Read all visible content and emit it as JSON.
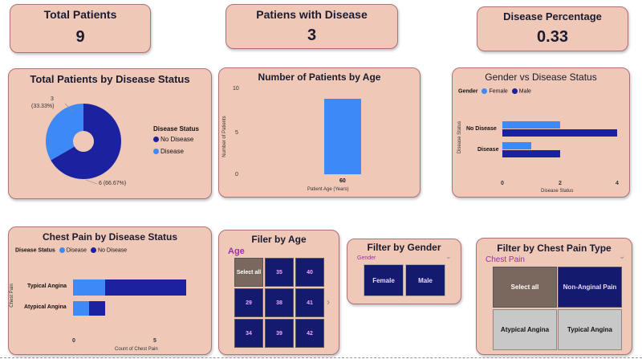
{
  "kpis": {
    "total_patients": {
      "title": "Total Patients",
      "value": "9"
    },
    "patients_with_disease": {
      "title": "Patiens with Disease",
      "value": "3"
    },
    "disease_percentage": {
      "title": "Disease Percentage",
      "value": "0.33"
    }
  },
  "donut": {
    "title": "Total Patients by Disease Status",
    "label_disease_line1": "3",
    "label_disease_line2": "(33.33%)",
    "label_no_disease": "6 (66.67%)",
    "legend_title": "Disease Status",
    "legend_items": [
      "No Disease",
      "Disease"
    ]
  },
  "age_chart": {
    "title": "Number of Patients by Age",
    "y_title": "Number of Patients",
    "x_title": "Patient Age (Years)",
    "y_ticks": [
      "10",
      "5",
      "0"
    ],
    "bar_label": "60"
  },
  "gender_chart": {
    "title": "Gender vs Disease Status",
    "legend_title": "Gender",
    "legend_items": [
      "Female",
      "Male"
    ],
    "y_title": "Disease Status",
    "categories": [
      "No Disease",
      "Disease"
    ],
    "x_ticks": [
      "0",
      "2",
      "4"
    ],
    "x_title": "Disease Status"
  },
  "chest_chart": {
    "title": "Chest Pain by Disease Status",
    "legend_title": "Disease Status",
    "legend_items": [
      "Disease",
      "No Disease"
    ],
    "y_title": "Chest Pain",
    "categories": [
      "Typical Angina",
      "Atypical Angina"
    ],
    "x_ticks": [
      "0",
      "5"
    ],
    "x_title": "Count of Chest Pain"
  },
  "age_filter": {
    "title": "Filer by Age",
    "header": "Age",
    "tiles": [
      "Select all",
      "35",
      "40",
      "29",
      "38",
      "41",
      "34",
      "39",
      "42"
    ]
  },
  "gender_filter": {
    "title": "Filter by Gender",
    "header": "Gender",
    "tiles": [
      "Female",
      "Male"
    ]
  },
  "chest_filter": {
    "title": "Filter by Chest Pain Type",
    "header": "Chest Pain",
    "tiles": [
      "Select all",
      "Non-Anginal Pain",
      "Atypical Angina",
      "Typical Angina"
    ]
  },
  "chart_data": [
    {
      "type": "pie",
      "title": "Total Patients by Disease Status",
      "categories": [
        "No Disease",
        "Disease"
      ],
      "values": [
        6,
        3
      ],
      "colors": [
        "#1a22a0",
        "#3d8af7"
      ]
    },
    {
      "type": "bar",
      "title": "Number of Patients by Age",
      "categories": [
        "60"
      ],
      "values": [
        9
      ],
      "ylim": [
        0,
        10
      ],
      "xlabel": "Patient Age (Years)",
      "ylabel": "Number of Patients"
    },
    {
      "type": "bar",
      "orientation": "horizontal",
      "title": "Gender vs Disease Status",
      "categories": [
        "No Disease",
        "Disease"
      ],
      "series": [
        {
          "name": "Female",
          "values": [
            2,
            1
          ],
          "color": "#3d8af7"
        },
        {
          "name": "Male",
          "values": [
            4,
            2
          ],
          "color": "#1a22a0"
        }
      ],
      "xlim": [
        0,
        4
      ],
      "xlabel": "Disease Status",
      "ylabel": "Disease Status"
    },
    {
      "type": "bar",
      "orientation": "horizontal",
      "stacked": true,
      "title": "Chest Pain by Disease Status",
      "categories": [
        "Typical Angina",
        "Atypical Angina"
      ],
      "series": [
        {
          "name": "Disease",
          "values": [
            2,
            1
          ],
          "color": "#3d8af7"
        },
        {
          "name": "No Disease",
          "values": [
            5,
            1
          ],
          "color": "#1a22a0"
        }
      ],
      "xlim": [
        0,
        7
      ],
      "xlabel": "Count of Chest Pain",
      "ylabel": "Chest Pain"
    }
  ],
  "colors": {
    "card": "#f0c8b8",
    "dark_blue": "#1a22a0",
    "light_blue": "#3d8af7",
    "tile_gray": "#7a685e",
    "tile_navy": "#141a6e",
    "tile_light": "#c8c8c8"
  }
}
